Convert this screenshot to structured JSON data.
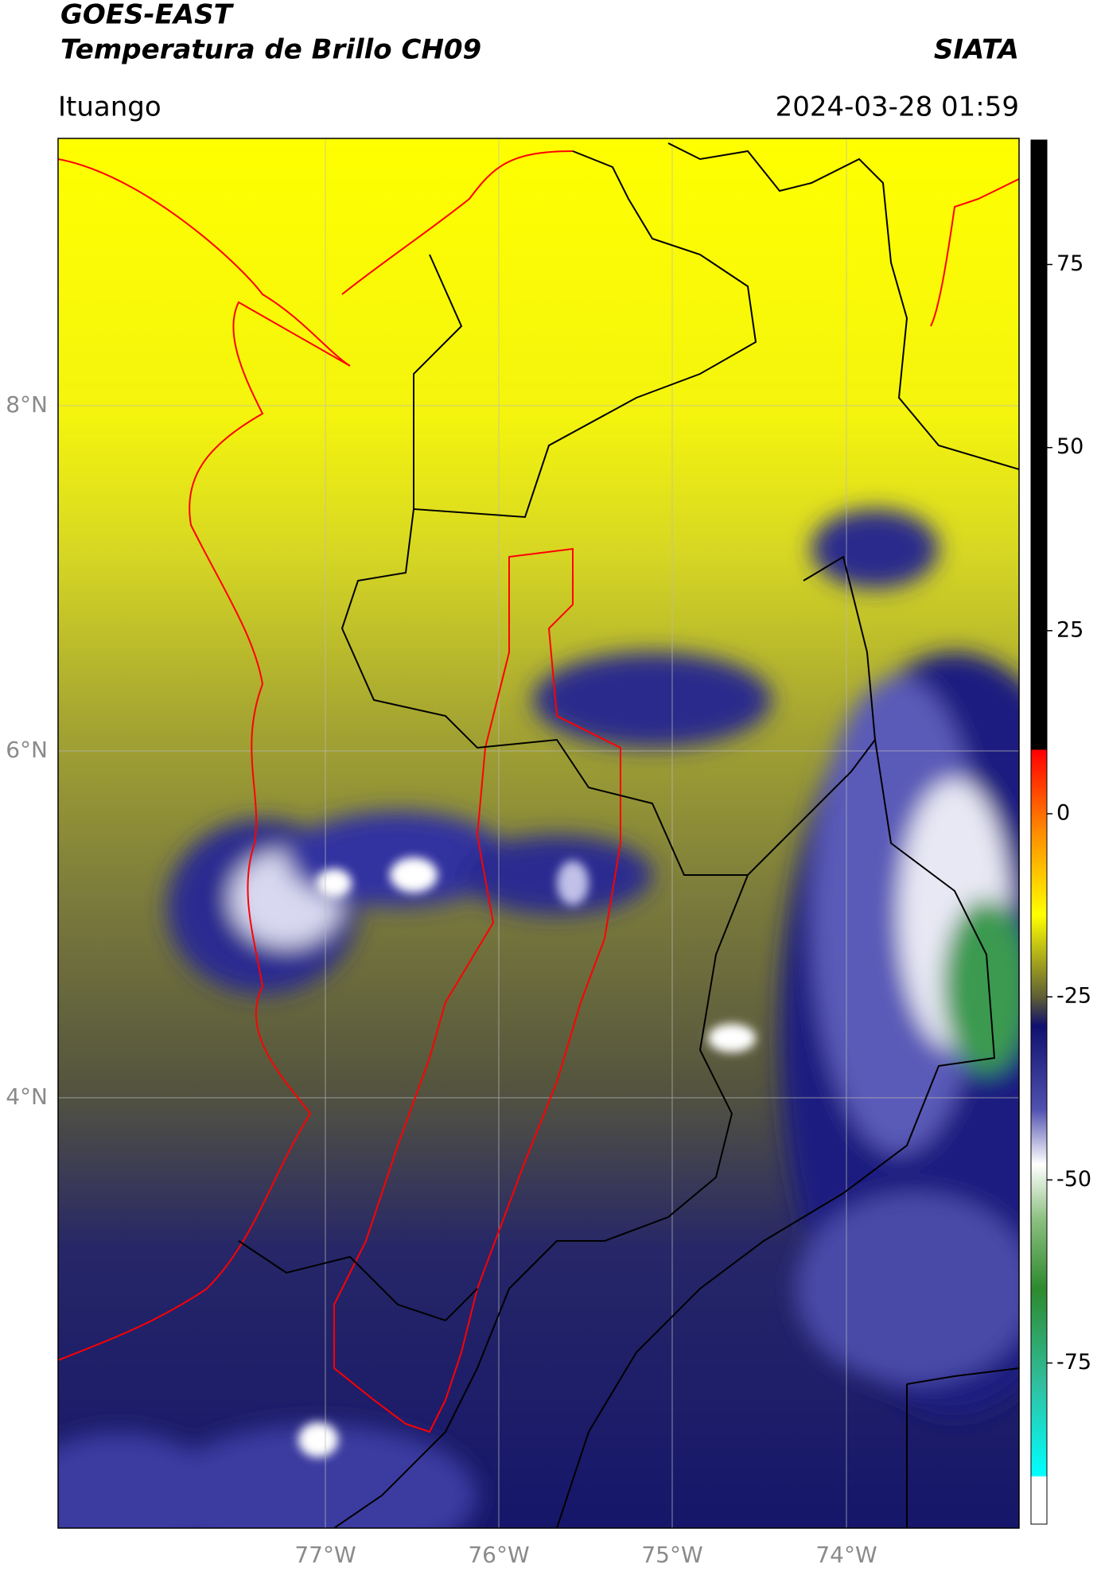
{
  "header": {
    "title": "GOES-EAST",
    "subtitle": "Temperatura de Brillo CH09",
    "brand": "SIATA",
    "location": "Ituango",
    "timestamp": "2024-03-28 01:59"
  },
  "map": {
    "lat_labels": [
      "8°N",
      "6°N",
      "4°N"
    ],
    "lon_labels": [
      "77°W",
      "76°W",
      "75°W",
      "74°W"
    ]
  },
  "colorbar": {
    "ylim": [
      -97,
      92
    ],
    "yticks": [
      75,
      50,
      25,
      0,
      -25,
      -50,
      -75
    ]
  }
}
